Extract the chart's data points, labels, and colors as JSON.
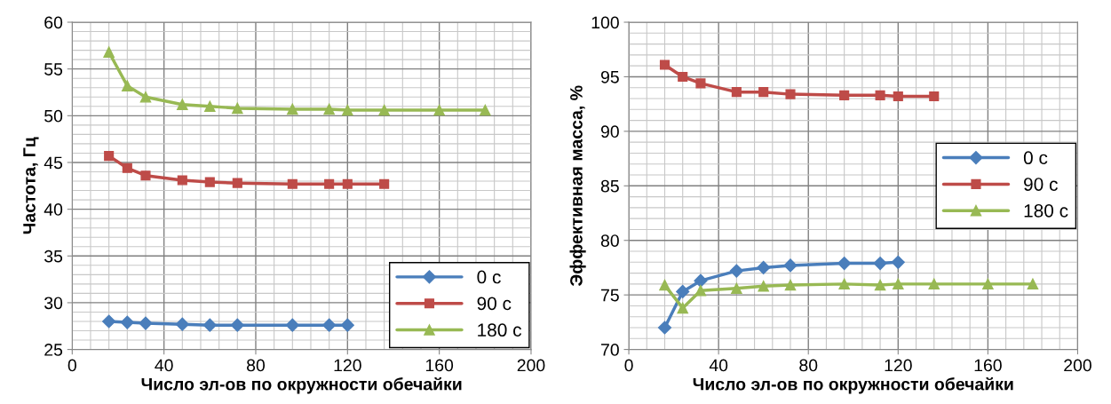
{
  "chart_data": [
    {
      "type": "line",
      "xlabel": "Число эл-ов по окружности обечайки",
      "ylabel": "Частота, Гц",
      "xlim": [
        0,
        200
      ],
      "xticks": [
        0,
        40,
        80,
        120,
        160,
        200
      ],
      "ylim": [
        25,
        60
      ],
      "yticks": [
        25,
        30,
        35,
        40,
        45,
        50,
        55,
        60
      ],
      "grid": true,
      "legend": "bottom right",
      "line_style": "solid",
      "series": [
        {
          "name": "0 с",
          "color": "#4a7ebb",
          "marker": "diamond",
          "x": [
            16,
            24,
            32,
            48,
            60,
            72,
            96,
            112,
            120
          ],
          "values": [
            28.0,
            27.9,
            27.8,
            27.7,
            27.6,
            27.6,
            27.6,
            27.6,
            27.6
          ]
        },
        {
          "name": "90 с",
          "color": "#be4b48",
          "marker": "square",
          "x": [
            16,
            24,
            32,
            48,
            60,
            72,
            96,
            112,
            120,
            136
          ],
          "values": [
            45.7,
            44.4,
            43.6,
            43.1,
            42.9,
            42.8,
            42.7,
            42.7,
            42.7,
            42.7
          ]
        },
        {
          "name": "180 с",
          "color": "#98b954",
          "marker": "triangle",
          "x": [
            16,
            24,
            32,
            48,
            60,
            72,
            96,
            112,
            120,
            136,
            160,
            180
          ],
          "values": [
            56.8,
            53.2,
            52.0,
            51.2,
            51.0,
            50.8,
            50.7,
            50.7,
            50.6,
            50.6,
            50.6,
            50.6
          ]
        }
      ]
    },
    {
      "type": "line",
      "xlabel": "Число эл-ов по окружности обечайки",
      "ylabel": "Эффективная масса, %",
      "xlim": [
        0,
        200
      ],
      "xticks": [
        0,
        40,
        80,
        120,
        160,
        200
      ],
      "ylim": [
        70,
        100
      ],
      "yticks": [
        70,
        75,
        80,
        85,
        90,
        95,
        100
      ],
      "grid": true,
      "legend": "right",
      "line_style": "solid",
      "series": [
        {
          "name": "0 с",
          "color": "#4a7ebb",
          "marker": "diamond",
          "x": [
            16,
            24,
            32,
            48,
            60,
            72,
            96,
            112,
            120
          ],
          "values": [
            72.0,
            75.3,
            76.3,
            77.2,
            77.5,
            77.7,
            77.9,
            77.9,
            78.0
          ]
        },
        {
          "name": "90 с",
          "color": "#be4b48",
          "marker": "square",
          "x": [
            16,
            24,
            32,
            48,
            60,
            72,
            96,
            112,
            120,
            136
          ],
          "values": [
            96.1,
            95.0,
            94.4,
            93.6,
            93.6,
            93.4,
            93.3,
            93.3,
            93.2,
            93.2
          ]
        },
        {
          "name": "180 с",
          "color": "#98b954",
          "marker": "triangle",
          "x": [
            16,
            24,
            32,
            48,
            60,
            72,
            96,
            112,
            120,
            136,
            160,
            180
          ],
          "values": [
            75.9,
            73.8,
            75.4,
            75.6,
            75.8,
            75.9,
            76.0,
            75.9,
            76.0,
            76.0,
            76.0,
            76.0
          ]
        }
      ]
    }
  ]
}
